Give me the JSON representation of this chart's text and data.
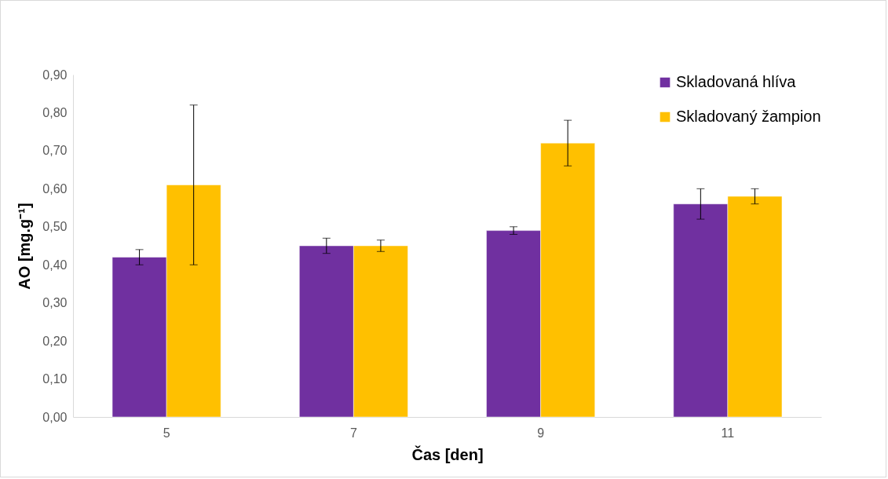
{
  "chart_data": {
    "type": "bar",
    "ylabel": "AO [mg.g⁻¹]",
    "xlabel": "Čas [den]",
    "categories": [
      "5",
      "7",
      "9",
      "11"
    ],
    "series": [
      {
        "name": "Skladovaná hlíva",
        "color": "#7030a0",
        "values": [
          0.42,
          0.45,
          0.49,
          0.56
        ],
        "errors": [
          0.02,
          0.02,
          0.01,
          0.04
        ]
      },
      {
        "name": "Skladovaný žampion",
        "color": "#ffc000",
        "values": [
          0.61,
          0.45,
          0.72,
          0.58
        ],
        "errors": [
          0.21,
          0.015,
          0.06,
          0.02
        ]
      }
    ],
    "ylim": [
      0,
      0.9
    ],
    "yticks": [
      {
        "value": 0,
        "label": "0,00"
      },
      {
        "value": 0.1,
        "label": "0,10"
      },
      {
        "value": 0.2,
        "label": "0,20"
      },
      {
        "value": 0.3,
        "label": "0,30"
      },
      {
        "value": 0.4,
        "label": "0,40"
      },
      {
        "value": 0.5,
        "label": "0,50"
      },
      {
        "value": 0.6,
        "label": "0,60"
      },
      {
        "value": 0.7,
        "label": "0,70"
      },
      {
        "value": 0.8,
        "label": "0,80"
      },
      {
        "value": 0.9,
        "label": "0,90"
      }
    ],
    "legend": "top right",
    "grid": false
  }
}
